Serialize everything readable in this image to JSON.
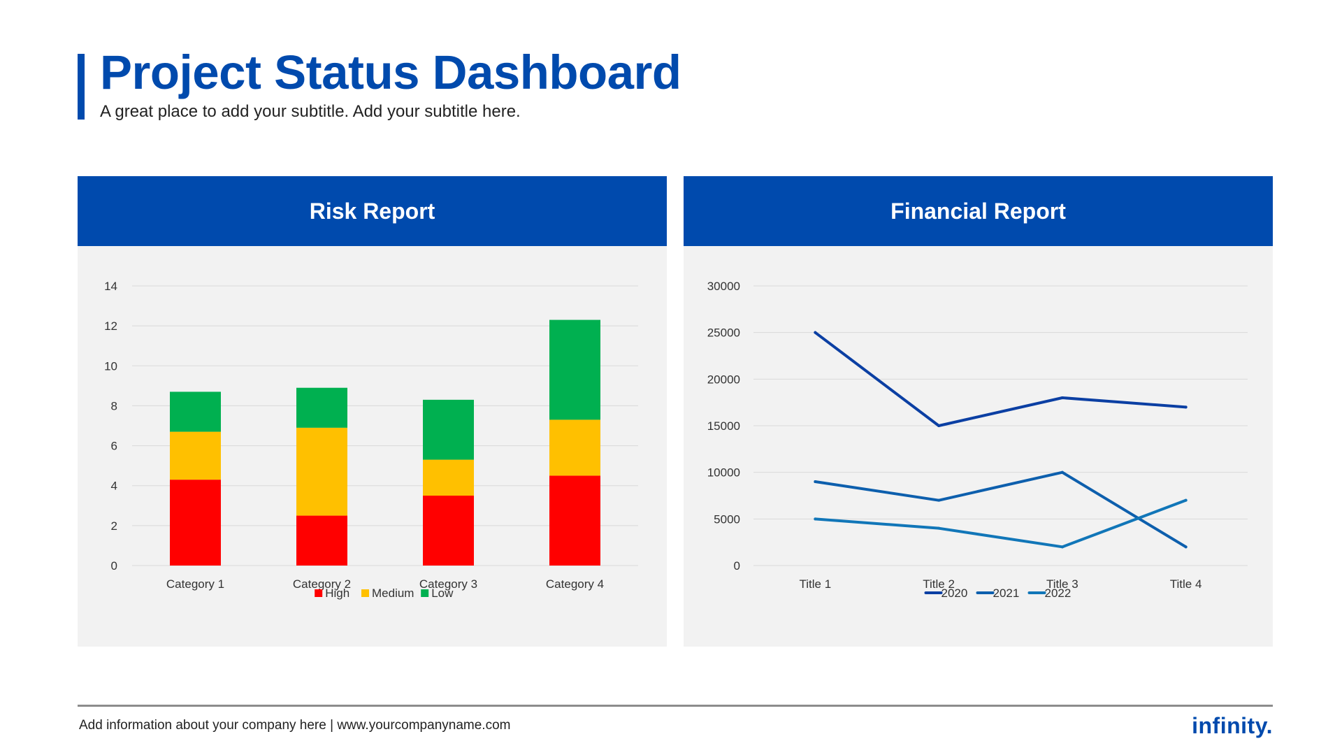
{
  "header": {
    "title": "Project Status Dashboard",
    "subtitle": "A great place to add your subtitle. Add your subtitle here."
  },
  "colors": {
    "brand_blue": "#004aad",
    "panel_bg": "#f2f2f2",
    "high": "#ff0000",
    "medium": "#ffc000",
    "low": "#00b050",
    "line_2020": "#0b3fa3",
    "line_2021": "#0d5fad",
    "line_2022": "#1176b8"
  },
  "panels": {
    "risk_title": "Risk Report",
    "financial_title": "Financial Report"
  },
  "chart_data": [
    {
      "type": "bar",
      "stacked": true,
      "title": "Risk Report",
      "categories": [
        "Category 1",
        "Category 2",
        "Category 3",
        "Category 4"
      ],
      "series": [
        {
          "name": "High",
          "values": [
            4.3,
            2.5,
            3.5,
            4.5
          ]
        },
        {
          "name": "Medium",
          "values": [
            2.4,
            4.4,
            1.8,
            2.8
          ]
        },
        {
          "name": "Low",
          "values": [
            2.0,
            2.0,
            3.0,
            5.0
          ]
        }
      ],
      "ylim": [
        0,
        14
      ],
      "yticks": [
        0,
        2,
        4,
        6,
        8,
        10,
        12,
        14
      ],
      "grid": true,
      "legend": "bottom"
    },
    {
      "type": "line",
      "title": "Financial Report",
      "categories": [
        "Title 1",
        "Title 2",
        "Title 3",
        "Title 4"
      ],
      "series": [
        {
          "name": "2020",
          "values": [
            25000,
            15000,
            18000,
            17000
          ]
        },
        {
          "name": "2021",
          "values": [
            9000,
            7000,
            10000,
            2000
          ]
        },
        {
          "name": "2022",
          "values": [
            5000,
            4000,
            2000,
            7000
          ]
        }
      ],
      "ylim": [
        0,
        30000
      ],
      "yticks": [
        0,
        5000,
        10000,
        15000,
        20000,
        25000,
        30000
      ],
      "grid": true,
      "legend": "bottom"
    }
  ],
  "footer": {
    "info": "Add information about your company here | www.yourcompanyname.com",
    "brand": "infinity."
  }
}
